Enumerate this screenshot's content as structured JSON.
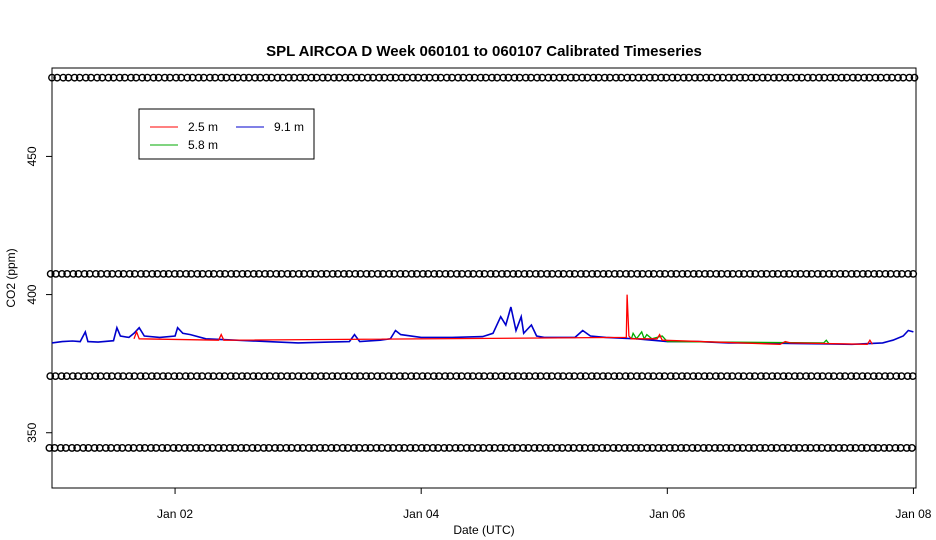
{
  "chart_data": {
    "type": "line",
    "title": "SPL AIRCOA D  Week 060101 to 060107  Calibrated Timeseries",
    "xlabel": "Date (UTC)",
    "ylabel": "CO2 (ppm)",
    "xlim": [
      "2006-01-01",
      "2006-01-08T00:30"
    ],
    "ylim": [
      330,
      482
    ],
    "x_ticks": [
      {
        "date": "2006-01-02",
        "label": "Jan 02"
      },
      {
        "date": "2006-01-04",
        "label": "Jan 04"
      },
      {
        "date": "2006-01-06",
        "label": "Jan 06"
      },
      {
        "date": "2006-01-08",
        "label": "Jan 08"
      }
    ],
    "y_ticks": [
      350,
      400,
      450
    ],
    "grid": false,
    "legend_position": "top-left",
    "legend": [
      {
        "name": "2.5 m",
        "color": "#ff0000"
      },
      {
        "name": "5.8 m",
        "color": "#00aa00"
      },
      {
        "name": "9.1 m",
        "color": "#0000cc"
      }
    ],
    "series": [
      {
        "name": "9.1 m",
        "color": "#0000cc",
        "points": [
          [
            "2006-01-01T00:00",
            382.5
          ],
          [
            "2006-01-01T02:00",
            383.0
          ],
          [
            "2006-01-01T04:00",
            383.2
          ],
          [
            "2006-01-01T05:30",
            383.0
          ],
          [
            "2006-01-01T06:30",
            386.5
          ],
          [
            "2006-01-01T07:00",
            383.0
          ],
          [
            "2006-01-01T09:00",
            382.8
          ],
          [
            "2006-01-01T12:00",
            383.3
          ],
          [
            "2006-01-01T12:40",
            388.0
          ],
          [
            "2006-01-01T13:20",
            385.0
          ],
          [
            "2006-01-01T15:00",
            384.5
          ],
          [
            "2006-01-01T16:00",
            386.0
          ],
          [
            "2006-01-01T17:00",
            388.0
          ],
          [
            "2006-01-01T18:00",
            385.0
          ],
          [
            "2006-01-01T21:00",
            384.5
          ],
          [
            "2006-01-02T00:00",
            385.0
          ],
          [
            "2006-01-02T00:30",
            388.0
          ],
          [
            "2006-01-02T01:30",
            386.0
          ],
          [
            "2006-01-02T03:00",
            385.5
          ],
          [
            "2006-01-02T06:00",
            384.0
          ],
          [
            "2006-01-02T12:00",
            383.5
          ],
          [
            "2006-01-02T18:00",
            383.0
          ],
          [
            "2006-01-03T00:00",
            382.5
          ],
          [
            "2006-01-03T06:00",
            382.8
          ],
          [
            "2006-01-03T10:00",
            383.0
          ],
          [
            "2006-01-03T11:00",
            385.5
          ],
          [
            "2006-01-03T12:00",
            383.0
          ],
          [
            "2006-01-03T16:00",
            383.5
          ],
          [
            "2006-01-03T18:00",
            384.0
          ],
          [
            "2006-01-03T19:00",
            387.0
          ],
          [
            "2006-01-03T20:00",
            385.5
          ],
          [
            "2006-01-04T00:00",
            384.5
          ],
          [
            "2006-01-04T06:00",
            384.5
          ],
          [
            "2006-01-04T12:00",
            384.8
          ],
          [
            "2006-01-04T14:00",
            386.0
          ],
          [
            "2006-01-04T15:30",
            392.0
          ],
          [
            "2006-01-04T16:30",
            389.0
          ],
          [
            "2006-01-04T17:30",
            395.5
          ],
          [
            "2006-01-04T18:30",
            387.0
          ],
          [
            "2006-01-04T19:30",
            392.0
          ],
          [
            "2006-01-04T20:00",
            386.0
          ],
          [
            "2006-01-04T21:30",
            389.0
          ],
          [
            "2006-01-04T22:30",
            385.0
          ],
          [
            "2006-01-05T00:00",
            384.5
          ],
          [
            "2006-01-05T06:00",
            384.5
          ],
          [
            "2006-01-05T07:30",
            387.0
          ],
          [
            "2006-01-05T09:00",
            385.0
          ],
          [
            "2006-01-05T12:00",
            384.5
          ],
          [
            "2006-01-05T18:00",
            384.0
          ],
          [
            "2006-01-06T00:00",
            383.0
          ],
          [
            "2006-01-06T06:00",
            383.0
          ],
          [
            "2006-01-06T12:00",
            382.5
          ],
          [
            "2006-01-06T18:00",
            382.5
          ],
          [
            "2006-01-07T00:00",
            382.3
          ],
          [
            "2006-01-07T06:00",
            382.2
          ],
          [
            "2006-01-07T12:00",
            382.0
          ],
          [
            "2006-01-07T18:00",
            382.5
          ],
          [
            "2006-01-07T20:00",
            383.5
          ],
          [
            "2006-01-07T22:00",
            385.0
          ],
          [
            "2006-01-07T23:00",
            387.0
          ],
          [
            "2006-01-08T00:00",
            386.5
          ]
        ]
      },
      {
        "name": "2.5 m",
        "color": "#ff0000",
        "points": [
          [
            "2006-01-01T16:00",
            384.0
          ],
          [
            "2006-01-01T16:30",
            386.5
          ],
          [
            "2006-01-01T17:00",
            384.0
          ],
          [
            "2006-01-02T08:30",
            383.5
          ],
          [
            "2006-01-02T09:00",
            385.5
          ],
          [
            "2006-01-02T09:30",
            383.5
          ],
          [
            "2006-01-05T16:00",
            384.5
          ],
          [
            "2006-01-05T16:10",
            400.0
          ],
          [
            "2006-01-05T16:30",
            385.0
          ],
          [
            "2006-01-05T17:00",
            384.0
          ],
          [
            "2006-01-05T22:00",
            384.0
          ],
          [
            "2006-01-05T22:30",
            385.5
          ],
          [
            "2006-01-05T23:00",
            383.5
          ],
          [
            "2006-01-06T22:00",
            382.0
          ],
          [
            "2006-01-06T23:00",
            383.0
          ],
          [
            "2006-01-07T00:00",
            382.5
          ],
          [
            "2006-01-07T15:00",
            382.0
          ],
          [
            "2006-01-07T15:30",
            383.5
          ],
          [
            "2006-01-07T16:00",
            382.0
          ]
        ]
      },
      {
        "name": "5.8 m",
        "color": "#00aa00",
        "points": [
          [
            "2006-01-05T17:00",
            384.0
          ],
          [
            "2006-01-05T17:20",
            386.0
          ],
          [
            "2006-01-05T18:00",
            384.0
          ],
          [
            "2006-01-05T19:00",
            386.5
          ],
          [
            "2006-01-05T19:30",
            384.0
          ],
          [
            "2006-01-05T20:00",
            385.5
          ],
          [
            "2006-01-05T21:00",
            384.0
          ],
          [
            "2006-01-05T23:00",
            385.0
          ],
          [
            "2006-01-06T00:00",
            383.0
          ],
          [
            "2006-01-07T06:30",
            382.5
          ],
          [
            "2006-01-07T07:00",
            383.5
          ],
          [
            "2006-01-07T07:30",
            382.3
          ]
        ]
      }
    ],
    "calibration_points": [
      {
        "level": 478.5,
        "start": "2006-01-01T00:30",
        "end": "2006-01-08T00:00",
        "step_hours": 2.2
      },
      {
        "level": 407.5,
        "start": "2006-01-01T00:15",
        "end": "2006-01-08T00:00",
        "step_hours": 2.2
      },
      {
        "level": 370.5,
        "start": "2006-01-01T00:10",
        "end": "2006-01-08T00:00",
        "step_hours": 2.2
      },
      {
        "level": 344.5,
        "start": "2006-01-01T00:00",
        "end": "2006-01-08T00:00",
        "step_hours": 2.2
      }
    ]
  }
}
